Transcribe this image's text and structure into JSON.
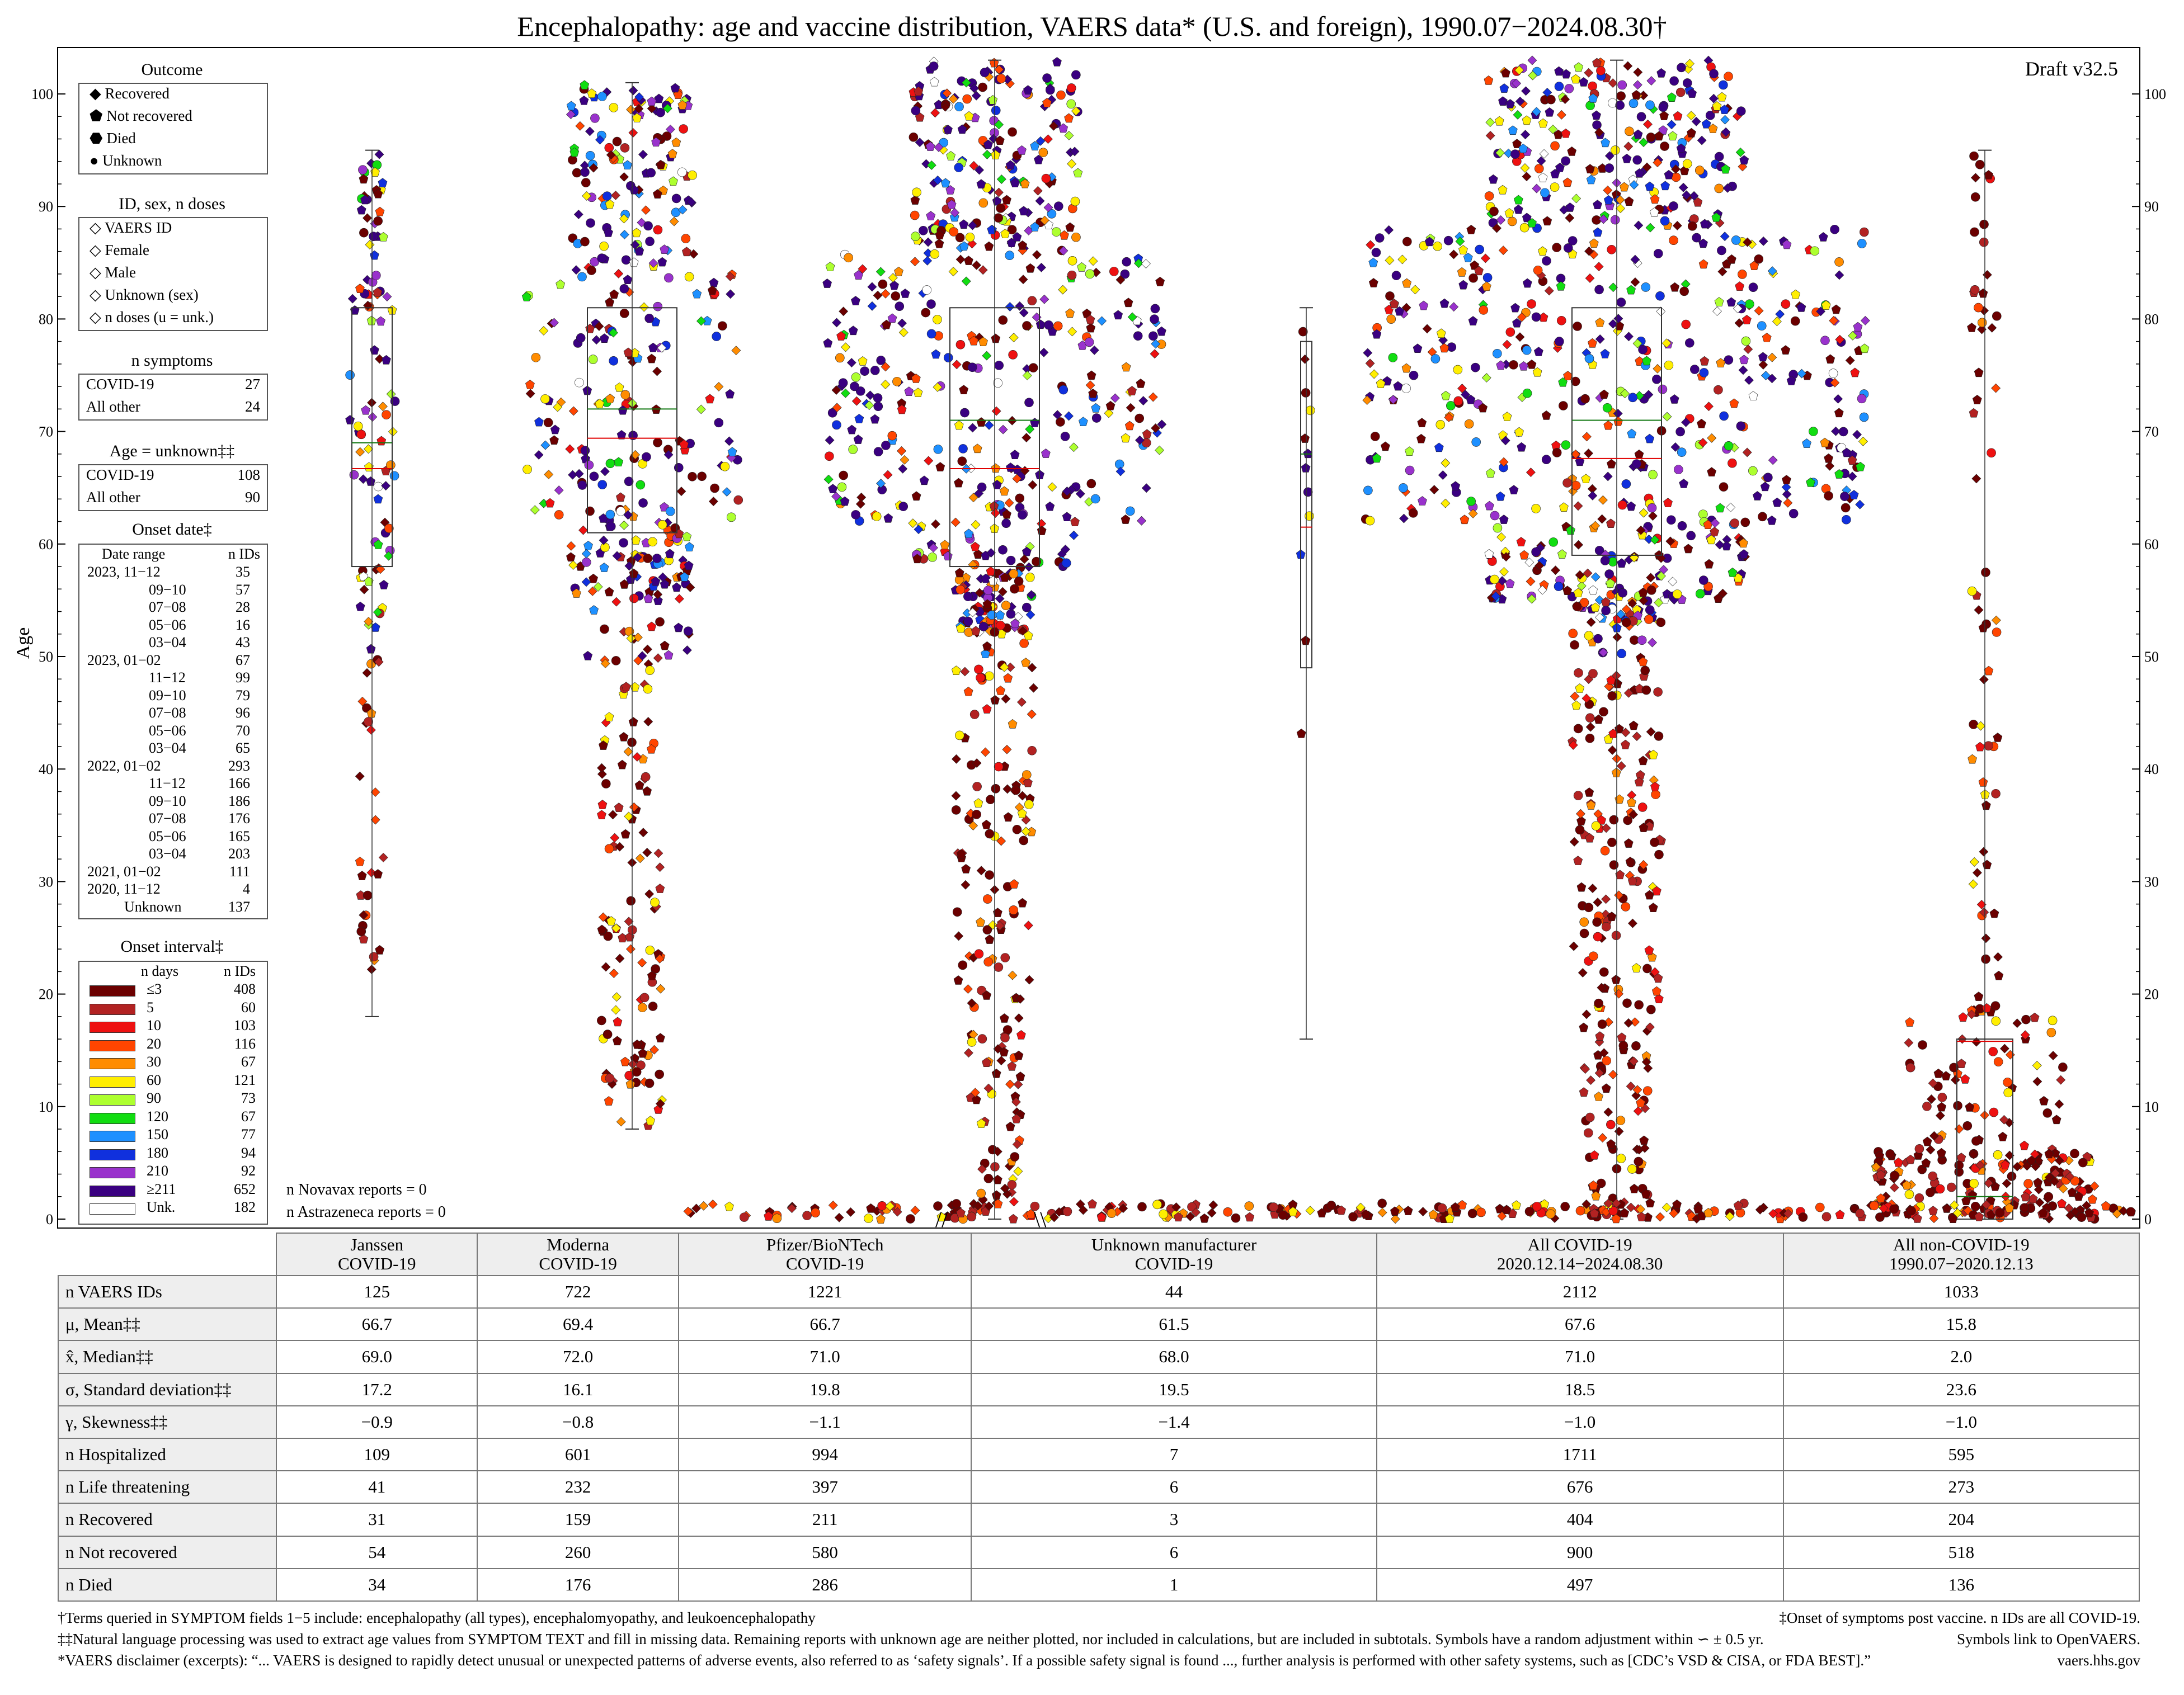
{
  "title": "Encephalopathy: age and vaccine distribution, VAERS data* (U.S. and foreign), 1990.07−2024.08.30†",
  "draft": "Draft v32.5",
  "chart_data": {
    "type": "scatter",
    "title": "Encephalopathy: age and vaccine distribution, VAERS data* (U.S. and foreign), 1990.07−2024.08.30†",
    "ylabel": "Age",
    "ylim": [
      0,
      104
    ],
    "yticks": [
      0,
      10,
      20,
      30,
      40,
      50,
      60,
      70,
      80,
      90,
      100
    ],
    "groups": [
      {
        "name": "Janssen COVID-19",
        "n": 125,
        "mean": 66.7,
        "median": 69.0,
        "q1": 58,
        "q3": 81,
        "min": 18,
        "max": 95
      },
      {
        "name": "Moderna COVID-19",
        "n": 722,
        "mean": 69.4,
        "median": 72.0,
        "q1": 61,
        "q3": 81,
        "min": 8,
        "max": 101
      },
      {
        "name": "Pfizer/BioNTech COVID-19",
        "n": 1221,
        "mean": 66.7,
        "median": 71.0,
        "q1": 58,
        "q3": 81,
        "min": 0,
        "max": 103
      },
      {
        "name": "Unknown manufacturer COVID-19",
        "n": 44,
        "mean": 61.5,
        "median": 68.0,
        "q1": 49,
        "q3": 78,
        "min": 16,
        "max": 81
      },
      {
        "name": "All COVID-19 2020.12.14−2024.08.30",
        "n": 2112,
        "mean": 67.6,
        "median": 71.0,
        "q1": 59,
        "q3": 81,
        "min": 0,
        "max": 103
      },
      {
        "name": "All non-COVID-19 1990.07−2020.12.13",
        "n": 1033,
        "mean": 15.8,
        "median": 2.0,
        "q1": 0,
        "q3": 16,
        "min": 0,
        "max": 95
      }
    ]
  },
  "legend": {
    "outcome_title": "Outcome",
    "outcome": [
      "Recovered",
      "Not recovered",
      "Died",
      "Unknown"
    ],
    "id_title": "ID, sex, n doses",
    "id_items": [
      "VAERS ID",
      "Female",
      "Male",
      "Unknown (sex)",
      "n doses (u = unk.)"
    ],
    "symptoms_title": "n symptoms",
    "symptoms": [
      {
        "label": "COVID-19",
        "value": "27"
      },
      {
        "label": "All other",
        "value": "24"
      }
    ],
    "ageunk_title": "Age = unknown‡‡",
    "ageunk": [
      {
        "label": "COVID-19",
        "value": "108"
      },
      {
        "label": "All other",
        "value": "90"
      }
    ],
    "onset_title": "Onset date‡",
    "onset_header": [
      "Date range",
      "n IDs"
    ],
    "onset_rows": [
      [
        "2023, 11−12",
        "35"
      ],
      [
        "09−10",
        "57"
      ],
      [
        "07−08",
        "28"
      ],
      [
        "05−06",
        "16"
      ],
      [
        "03−04",
        "43"
      ],
      [
        "2023, 01−02",
        "67"
      ],
      [
        "11−12",
        "99"
      ],
      [
        "09−10",
        "79"
      ],
      [
        "07−08",
        "96"
      ],
      [
        "05−06",
        "70"
      ],
      [
        "03−04",
        "65"
      ],
      [
        "2022, 01−02",
        "293"
      ],
      [
        "11−12",
        "166"
      ],
      [
        "09−10",
        "186"
      ],
      [
        "07−08",
        "176"
      ],
      [
        "05−06",
        "165"
      ],
      [
        "03−04",
        "203"
      ],
      [
        "2021, 01−02",
        "111"
      ],
      [
        "2020, 11−12",
        "4"
      ],
      [
        "Unknown",
        "137"
      ]
    ],
    "interval_title": "Onset interval‡",
    "interval_header": [
      "n days",
      "n IDs"
    ],
    "interval_rows": [
      {
        "label": "≤3",
        "value": "408",
        "color": "#6b0000"
      },
      {
        "label": "5",
        "value": "60",
        "color": "#b22222"
      },
      {
        "label": "10",
        "value": "103",
        "color": "#ee1111"
      },
      {
        "label": "20",
        "value": "116",
        "color": "#ff4500"
      },
      {
        "label": "30",
        "value": "67",
        "color": "#ff8c00"
      },
      {
        "label": "60",
        "value": "121",
        "color": "#ffee00"
      },
      {
        "label": "90",
        "value": "73",
        "color": "#adff2f"
      },
      {
        "label": "120",
        "value": "67",
        "color": "#11dd11"
      },
      {
        "label": "150",
        "value": "77",
        "color": "#1e90ff"
      },
      {
        "label": "180",
        "value": "94",
        "color": "#1030dd"
      },
      {
        "label": "210",
        "value": "92",
        "color": "#9932cc"
      },
      {
        "label": "≥211",
        "value": "652",
        "color": "#3a0080"
      },
      {
        "label": "Unk.",
        "value": "182",
        "color": "#ffffff"
      }
    ]
  },
  "novavax": "n Novavax reports = 0",
  "astrazeneca": "n Astrazeneca reports = 0",
  "table": {
    "headers": [
      [
        "Janssen",
        "COVID-19"
      ],
      [
        "Moderna",
        "COVID-19"
      ],
      [
        "Pfizer/BioNTech",
        "COVID-19"
      ],
      [
        "Unknown manufacturer",
        "COVID-19"
      ],
      [
        "All COVID-19",
        "2020.12.14−2024.08.30"
      ],
      [
        "All non-COVID-19",
        "1990.07−2020.12.13"
      ]
    ],
    "rows": [
      {
        "label": "n VAERS IDs",
        "values": [
          "125",
          "722",
          "1221",
          "44",
          "2112",
          "1033"
        ]
      },
      {
        "label": "μ, Mean‡‡",
        "values": [
          "66.7",
          "69.4",
          "66.7",
          "61.5",
          "67.6",
          "15.8"
        ]
      },
      {
        "label": "x̂, Median‡‡",
        "values": [
          "69.0",
          "72.0",
          "71.0",
          "68.0",
          "71.0",
          "2.0"
        ]
      },
      {
        "label": "σ, Standard deviation‡‡",
        "values": [
          "17.2",
          "16.1",
          "19.8",
          "19.5",
          "18.5",
          "23.6"
        ]
      },
      {
        "label": "γ, Skewness‡‡",
        "values": [
          "−0.9",
          "−0.8",
          "−1.1",
          "−1.4",
          "−1.0",
          "−1.0"
        ]
      },
      {
        "label": "n Hospitalized",
        "values": [
          "109",
          "601",
          "994",
          "7",
          "1711",
          "595"
        ]
      },
      {
        "label": "n Life threatening",
        "values": [
          "41",
          "232",
          "397",
          "6",
          "676",
          "273"
        ]
      },
      {
        "label": "n Recovered",
        "values": [
          "31",
          "159",
          "211",
          "3",
          "404",
          "204"
        ]
      },
      {
        "label": "n Not recovered",
        "values": [
          "54",
          "260",
          "580",
          "6",
          "900",
          "518"
        ]
      },
      {
        "label": "n Died",
        "values": [
          "34",
          "176",
          "286",
          "1",
          "497",
          "136"
        ]
      }
    ]
  },
  "footnotes": {
    "f1": "†Terms queried in SYMPTOM fields 1−5 include: encephalopathy (all types), encephalomyopathy, and leukoencephalopathy",
    "f1r": "‡Onset of symptoms post vaccine. n IDs are all COVID-19.",
    "f2": "‡‡Natural language processing was used to extract age values from SYMPTOM TEXT and fill in missing data. Remaining reports with unknown age are neither plotted, nor included in calculations, but are included in subtotals. Symbols have a random adjustment within ∽ ± 0.5 yr.",
    "f2r": "Symbols link to OpenVAERS.",
    "f3": "*VAERS disclaimer (excerpts): “... VAERS is designed to rapidly detect unusual or unexpected patterns of adverse events, also referred to as ‘safety signals’. If a possible safety signal is found ..., further analysis is performed with other safety systems, such as [CDC’s VSD & CISA, or FDA BEST].”",
    "f3r": "vaers.hhs.gov"
  }
}
